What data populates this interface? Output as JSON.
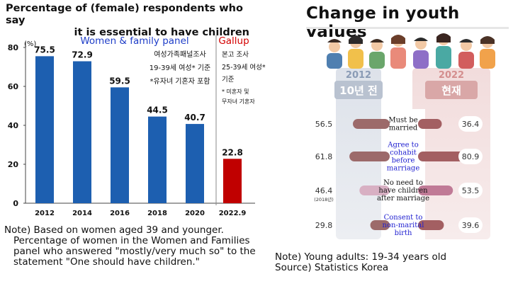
{
  "left": {
    "title_line1": "Percentage of (female) respondents who say",
    "title_line2": "it is essential to have children",
    "panel_label": "Women & family panel",
    "panel_color": "#1f3ec8",
    "panel_note": [
      "여성가족패널조사",
      "19-39세 여성* 기준",
      "*유자녀 기혼자 포함"
    ],
    "gallup_label": "Gallup",
    "gallup_color": "#d40000",
    "gallup_note": [
      "본고 조사",
      "25-39세 여성*",
      "기준",
      "* 미혼자 및",
      "무자녀 기혼자"
    ],
    "unit": "(%)",
    "note_line1": "Note) Based on women aged 39 and younger.",
    "note_rest": "Percentage of women in the Women and Families panel who answered \"mostly/very much so\" to the statement \"One should have children.\""
  },
  "right": {
    "title": "Change in youth values",
    "year_left": "2012",
    "year_right": "2022",
    "label_left": "10년 전",
    "label_right": "현재",
    "note_line1": "Note) Young adults: 19-34 years old",
    "note_line2": "Source) Statistics Korea"
  },
  "chart_data": [
    {
      "type": "bar",
      "categories": [
        "2012",
        "2014",
        "2016",
        "2018",
        "2020",
        "2022.9"
      ],
      "values": [
        75.5,
        72.9,
        59.5,
        44.5,
        40.7,
        22.8
      ],
      "bar_colors": [
        "#1d5fb0",
        "#1d5fb0",
        "#1d5fb0",
        "#1d5fb0",
        "#1d5fb0",
        "#c00000"
      ],
      "title": "Percentage of (female) respondents who say it is essential to have children",
      "ylabel": "(%)",
      "ylim": [
        0,
        80
      ],
      "yticks": [
        0,
        20,
        40,
        60,
        80
      ],
      "grid": false
    },
    {
      "type": "bar",
      "categories": [
        "Must be married",
        "Agree to cohabit before marriage",
        "No need to have children after marriage",
        "Consent to non-marital birth"
      ],
      "category_colors": [
        "#111111",
        "#1f1fd0",
        "#111111",
        "#1f1fd0"
      ],
      "series": [
        {
          "name": "2012",
          "values": [
            56.5,
            61.8,
            46.4,
            29.8
          ],
          "value_notes": [
            "",
            "",
            "(2018년)",
            ""
          ]
        },
        {
          "name": "2022",
          "values": [
            36.4,
            80.9,
            53.5,
            39.6
          ]
        }
      ],
      "title": "Change in youth values",
      "xlim": [
        0,
        100
      ]
    }
  ]
}
